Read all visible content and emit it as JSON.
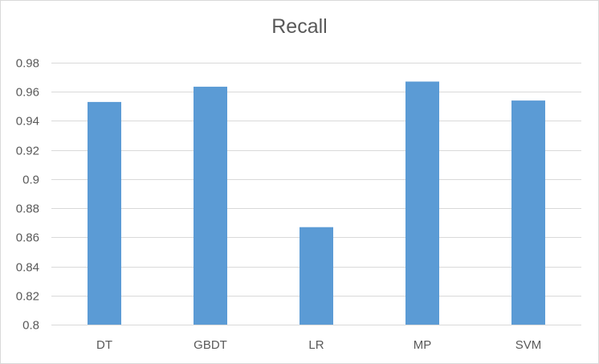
{
  "chart_data": {
    "type": "bar",
    "title": "Recall",
    "xlabel": "",
    "ylabel": "",
    "categories": [
      "DT",
      "GBDT",
      "LR",
      "MP",
      "SVM"
    ],
    "values": [
      0.953,
      0.9635,
      0.867,
      0.967,
      0.954
    ],
    "ylim": [
      0.8,
      0.98
    ],
    "yticks": [
      "0.8",
      "0.82",
      "0.84",
      "0.86",
      "0.88",
      "0.9",
      "0.92",
      "0.94",
      "0.96",
      "0.98"
    ],
    "grid": true,
    "legend": "none",
    "bar_color": "#5b9bd5",
    "grid_color": "#d9d9d9",
    "text_color": "#595959"
  }
}
